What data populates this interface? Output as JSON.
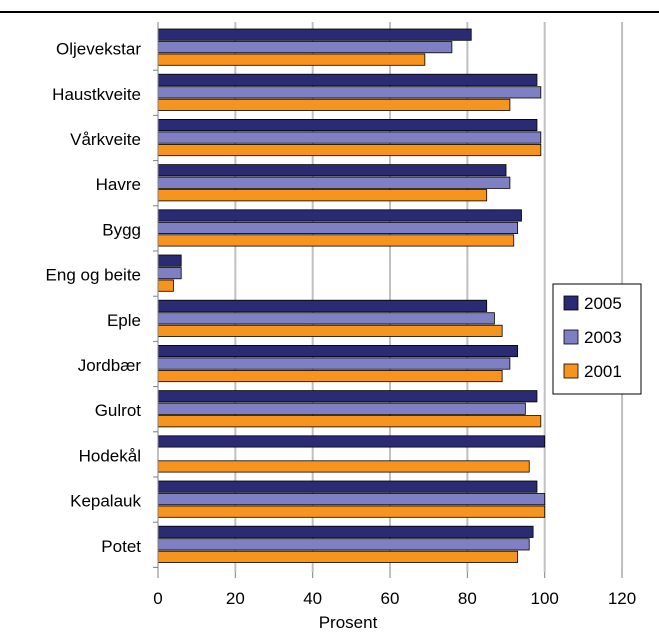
{
  "chart_data": {
    "type": "bar",
    "orientation": "horizontal",
    "categories": [
      "Oljevekstar",
      "Haustkveite",
      "Vårkveite",
      "Havre",
      "Bygg",
      "Eng og beite",
      "Eple",
      "Jordbær",
      "Gulrot",
      "Hodekål",
      "Kepalauk",
      "Potet"
    ],
    "series": [
      {
        "name": "2005",
        "color": "#2b2b74",
        "values": [
          81,
          98,
          98,
          90,
          94,
          6,
          85,
          93,
          98,
          100,
          98,
          97
        ]
      },
      {
        "name": "2003",
        "color": "#7f7fc4",
        "values": [
          76,
          99,
          99,
          91,
          93,
          6,
          87,
          91,
          95,
          null,
          100,
          96
        ]
      },
      {
        "name": "2001",
        "color": "#f7941d",
        "values": [
          69,
          91,
          99,
          85,
          92,
          4,
          89,
          89,
          99,
          96,
          100,
          93
        ]
      }
    ],
    "xlabel": "Prosent",
    "xlim": [
      0,
      120
    ],
    "xticks": [
      "0",
      "20",
      "40",
      "60",
      "80",
      "100",
      "120"
    ],
    "grid": true,
    "legend_position": "right"
  }
}
